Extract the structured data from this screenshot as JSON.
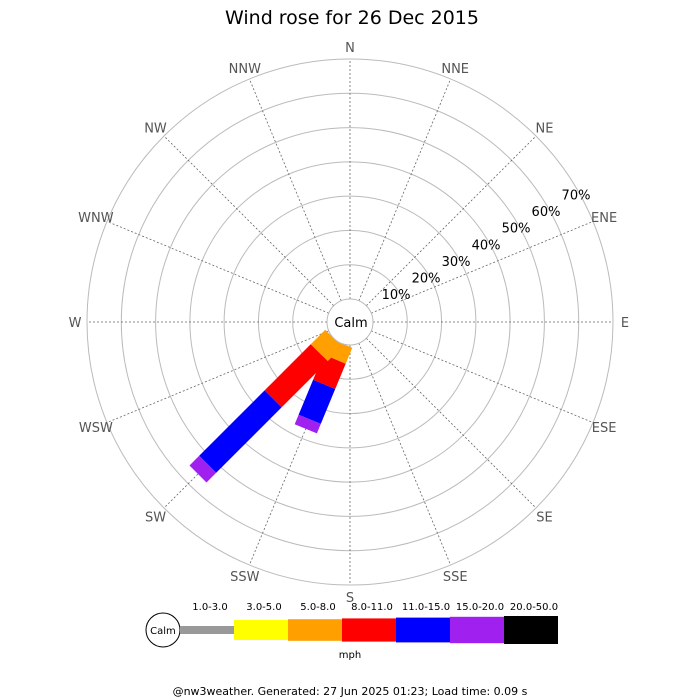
{
  "title": "Wind rose for 26 Dec 2015",
  "footer": "@nw3weather. Generated: 27 Jun 2025 01:23; Load time: 0.09 s",
  "calm_label": "Calm",
  "legend": {
    "calm_label": "Calm",
    "unit": "mph",
    "bins": [
      {
        "label": "1.0-3.0",
        "color": "#999999"
      },
      {
        "label": "3.0-5.0",
        "color": "#ffff00"
      },
      {
        "label": "5.0-8.0",
        "color": "#ffa000"
      },
      {
        "label": "8.0-11.0",
        "color": "#ff0000"
      },
      {
        "label": "11.0-15.0",
        "color": "#0000ff"
      },
      {
        "label": "15.0-20.0",
        "color": "#a020f0"
      },
      {
        "label": "20.0-50.0",
        "color": "#000000"
      }
    ]
  },
  "chart_data": {
    "type": "wind-rose",
    "title": "Wind rose for 26 Dec 2015",
    "unit": "mph",
    "directions": [
      "N",
      "NNE",
      "NE",
      "ENE",
      "E",
      "ESE",
      "SE",
      "SSE",
      "S",
      "SSW",
      "SW",
      "WSW",
      "W",
      "WNW",
      "NW",
      "NNW"
    ],
    "radial_ticks": [
      "10%",
      "20%",
      "30%",
      "40%",
      "50%",
      "60%",
      "70%"
    ],
    "radial_max": 70,
    "speed_bins": [
      "1.0-3.0",
      "3.0-5.0",
      "5.0-8.0",
      "8.0-11.0",
      "11.0-15.0",
      "15.0-20.0",
      "20.0-50.0"
    ],
    "series": [
      {
        "direction": "SSW",
        "cumulative_percent": [
          0,
          0,
          5,
          13,
          24,
          27,
          27
        ]
      },
      {
        "direction": "SW",
        "cumulative_percent": [
          0,
          0,
          6,
          25,
          52,
          56,
          56
        ]
      }
    ]
  }
}
